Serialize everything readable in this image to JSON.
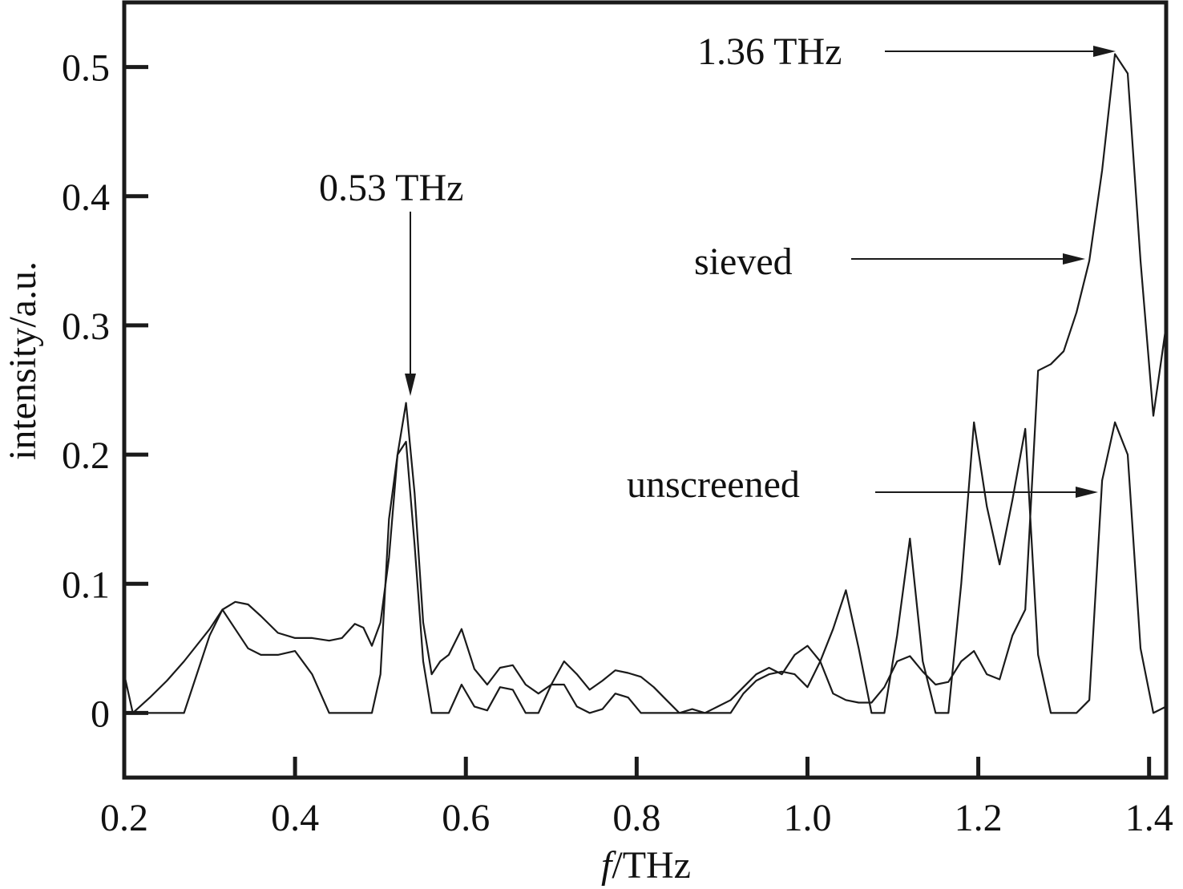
{
  "chart_data": {
    "type": "line",
    "title": "",
    "xlabel_italic": "f",
    "xlabel_rest": "/THz",
    "ylabel": "intensity/a.u.",
    "xlim": [
      0.2,
      1.42
    ],
    "ylim": [
      -0.05,
      0.55
    ],
    "xticks": [
      0.2,
      0.4,
      0.6,
      0.8,
      1.0,
      1.2,
      1.4
    ],
    "xtick_labels": [
      "0.2",
      "0.4",
      "0.6",
      "0.8",
      "1.0",
      "1.2",
      "1.4"
    ],
    "yticks": [
      0,
      0.1,
      0.2,
      0.3,
      0.4,
      0.5
    ],
    "ytick_labels": [
      "0",
      "0.1",
      "0.2",
      "0.3",
      "0.4",
      "0.5"
    ],
    "grid": false,
    "series": [
      {
        "name": "sieved",
        "x": [
          0.2,
          0.21,
          0.23,
          0.25,
          0.27,
          0.3,
          0.315,
          0.33,
          0.345,
          0.36,
          0.38,
          0.4,
          0.42,
          0.44,
          0.455,
          0.47,
          0.48,
          0.49,
          0.5,
          0.51,
          0.52,
          0.53,
          0.54,
          0.55,
          0.56,
          0.57,
          0.58,
          0.595,
          0.61,
          0.625,
          0.64,
          0.655,
          0.67,
          0.685,
          0.7,
          0.715,
          0.73,
          0.745,
          0.76,
          0.775,
          0.79,
          0.805,
          0.82,
          0.835,
          0.85,
          0.865,
          0.88,
          0.895,
          0.91,
          0.925,
          0.94,
          0.955,
          0.97,
          0.985,
          1.0,
          1.015,
          1.03,
          1.045,
          1.06,
          1.075,
          1.09,
          1.105,
          1.12,
          1.135,
          1.15,
          1.165,
          1.18,
          1.195,
          1.21,
          1.225,
          1.24,
          1.255,
          1.27,
          1.285,
          1.3,
          1.315,
          1.33,
          1.345,
          1.36,
          1.375,
          1.39,
          1.405,
          1.42
        ],
        "values": [
          0.0,
          0.0,
          0.012,
          0.025,
          0.04,
          0.065,
          0.08,
          0.086,
          0.084,
          0.075,
          0.062,
          0.058,
          0.058,
          0.056,
          0.058,
          0.069,
          0.066,
          0.052,
          0.07,
          0.12,
          0.2,
          0.24,
          0.17,
          0.07,
          0.03,
          0.04,
          0.045,
          0.065,
          0.034,
          0.022,
          0.035,
          0.037,
          0.022,
          0.015,
          0.022,
          0.04,
          0.03,
          0.018,
          0.025,
          0.033,
          0.031,
          0.028,
          0.02,
          0.01,
          0.0,
          0.003,
          0.0,
          0.005,
          0.01,
          0.02,
          0.03,
          0.035,
          0.03,
          0.045,
          0.052,
          0.04,
          0.015,
          0.01,
          0.008,
          0.008,
          0.02,
          0.04,
          0.044,
          0.032,
          0.022,
          0.024,
          0.04,
          0.048,
          0.03,
          0.026,
          0.06,
          0.08,
          0.265,
          0.27,
          0.28,
          0.31,
          0.35,
          0.42,
          0.51,
          0.495,
          0.35,
          0.23,
          0.3
        ]
      },
      {
        "name": "unscreened",
        "x": [
          0.2,
          0.21,
          0.23,
          0.25,
          0.27,
          0.3,
          0.315,
          0.33,
          0.345,
          0.36,
          0.38,
          0.4,
          0.42,
          0.44,
          0.455,
          0.47,
          0.48,
          0.49,
          0.5,
          0.51,
          0.52,
          0.53,
          0.54,
          0.55,
          0.56,
          0.57,
          0.58,
          0.595,
          0.61,
          0.625,
          0.64,
          0.655,
          0.67,
          0.685,
          0.7,
          0.715,
          0.73,
          0.745,
          0.76,
          0.775,
          0.79,
          0.805,
          0.82,
          0.835,
          0.85,
          0.865,
          0.88,
          0.895,
          0.91,
          0.925,
          0.94,
          0.955,
          0.97,
          0.985,
          1.0,
          1.015,
          1.03,
          1.045,
          1.06,
          1.075,
          1.09,
          1.105,
          1.12,
          1.135,
          1.15,
          1.165,
          1.18,
          1.195,
          1.21,
          1.225,
          1.24,
          1.255,
          1.27,
          1.285,
          1.3,
          1.315,
          1.33,
          1.345,
          1.36,
          1.375,
          1.39,
          1.405,
          1.42
        ],
        "values": [
          0.03,
          0.0,
          0.0,
          0.0,
          0.0,
          0.06,
          0.08,
          0.065,
          0.05,
          0.045,
          0.045,
          0.048,
          0.03,
          0.0,
          0.0,
          0.0,
          0.0,
          0.0,
          0.03,
          0.15,
          0.2,
          0.21,
          0.13,
          0.04,
          0.0,
          0.0,
          0.0,
          0.022,
          0.005,
          0.002,
          0.02,
          0.018,
          0.0,
          0.0,
          0.022,
          0.022,
          0.005,
          0.0,
          0.003,
          0.015,
          0.012,
          0.0,
          0.0,
          0.0,
          0.0,
          0.0,
          0.0,
          0.0,
          0.0,
          0.015,
          0.025,
          0.03,
          0.032,
          0.03,
          0.02,
          0.04,
          0.065,
          0.095,
          0.05,
          0.0,
          0.0,
          0.06,
          0.135,
          0.04,
          0.0,
          0.0,
          0.1,
          0.225,
          0.16,
          0.115,
          0.165,
          0.22,
          0.045,
          0.0,
          0.0,
          0.0,
          0.01,
          0.18,
          0.225,
          0.2,
          0.05,
          0.0,
          0.005
        ]
      }
    ],
    "annotations": [
      {
        "text": "1.36 THz"
      },
      {
        "text": "0.53 THz"
      },
      {
        "text": "sieved"
      },
      {
        "text": "unscreened"
      }
    ]
  }
}
